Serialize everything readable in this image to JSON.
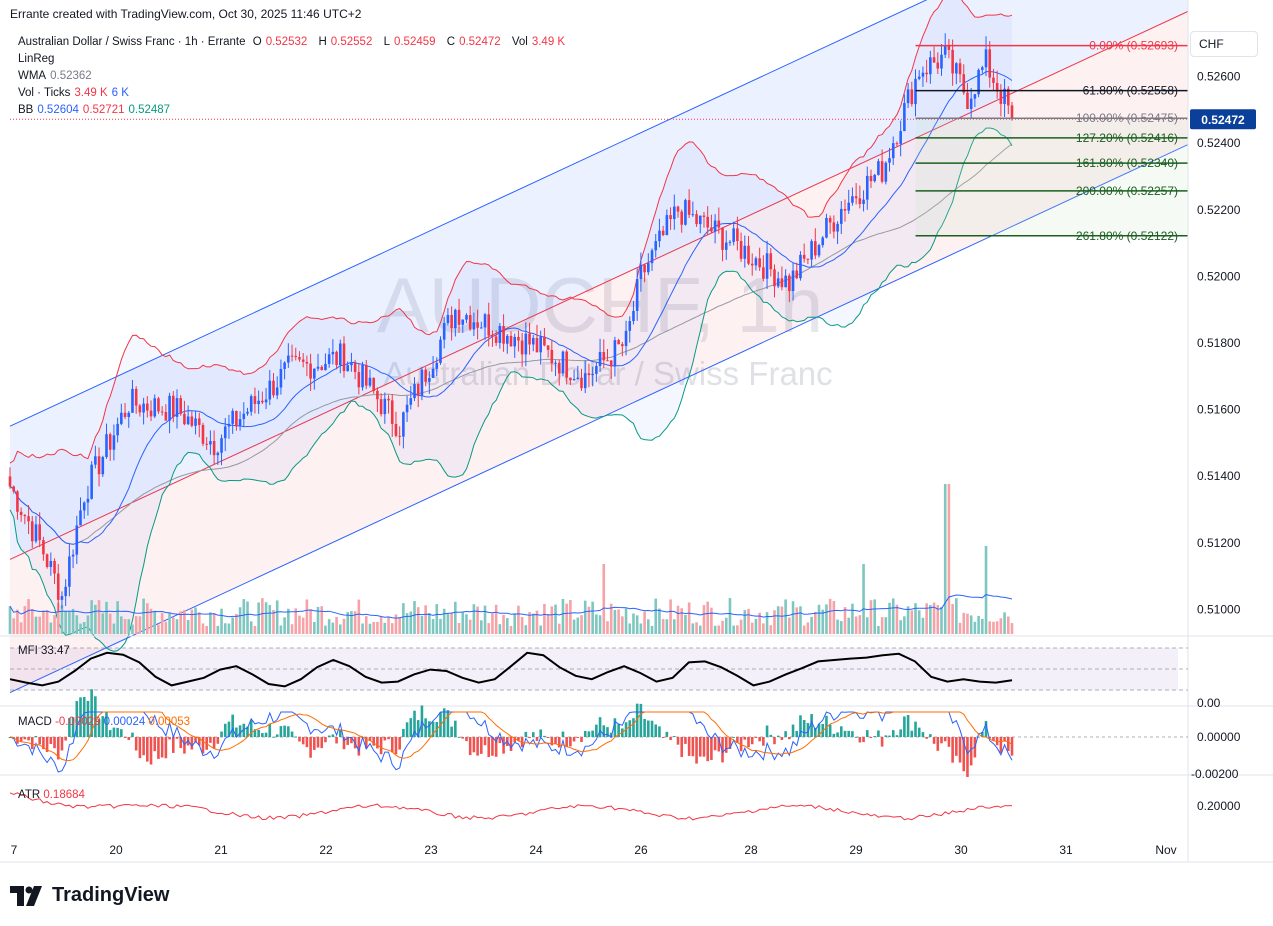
{
  "header": {
    "credit": "Errante created with TradingView.com, Oct 30, 2025 11:46 UTC+2"
  },
  "legend": {
    "symbol": "Australian Dollar / Swiss Franc · 1h · Errante",
    "o_label": "O",
    "o_value": "0.52532",
    "h_label": "H",
    "h_value": "0.52552",
    "l_label": "L",
    "l_value": "0.52459",
    "c_label": "C",
    "c_value": "0.52472",
    "vol_label": "Vol",
    "vol_value": "3.49 K",
    "linreg": "LinReg",
    "wma_label": "WMA",
    "wma_value": "0.52362",
    "volticks_label": "Vol · Ticks",
    "volticks_v1": "3.49 K",
    "volticks_v2": "6 K",
    "bb_label": "BB",
    "bb_basis": "0.52604",
    "bb_upper": "0.52721",
    "bb_lower": "0.52487"
  },
  "currency": "CHF",
  "logo_text": "TradingView",
  "watermark": {
    "ticker": "AUDCHF, 1h",
    "name": "Australian Dollar / Swiss Franc"
  },
  "colors": {
    "up": "#2962ff",
    "down": "#f23645",
    "vol_up": "#7ec7c0",
    "vol_down": "#f5a3a7",
    "channel_line": "#2962ff",
    "regression_line": "#f23645",
    "price_label_bg": "#0a3f9a"
  },
  "chart_data": [
    {
      "type": "candlestick",
      "title": "AUDCHF, 1h",
      "x_ticks": [
        "7",
        "20",
        "21",
        "22",
        "23",
        "24",
        "26",
        "28",
        "29",
        "30",
        "31",
        "Nov"
      ],
      "y_ticks": [
        "0.52600",
        "0.52400",
        "0.52200",
        "0.52000",
        "0.51800",
        "0.51600",
        "0.51400",
        "0.51200",
        "0.51000"
      ],
      "ylim": [
        0.5092,
        0.5274
      ],
      "last_price": "0.52472",
      "last_price_value": 0.52472,
      "anchor_points": [
        {
          "x": 0,
          "y": 0.5137
        },
        {
          "x": 8,
          "y": 0.512
        },
        {
          "x": 14,
          "y": 0.5104
        },
        {
          "x": 20,
          "y": 0.5135
        },
        {
          "x": 32,
          "y": 0.5162
        },
        {
          "x": 45,
          "y": 0.516
        },
        {
          "x": 55,
          "y": 0.515
        },
        {
          "x": 75,
          "y": 0.5172
        },
        {
          "x": 90,
          "y": 0.5176
        },
        {
          "x": 105,
          "y": 0.5155
        },
        {
          "x": 120,
          "y": 0.519
        },
        {
          "x": 140,
          "y": 0.518
        },
        {
          "x": 155,
          "y": 0.517
        },
        {
          "x": 166,
          "y": 0.518
        },
        {
          "x": 170,
          "y": 0.52
        },
        {
          "x": 180,
          "y": 0.522
        },
        {
          "x": 195,
          "y": 0.521
        },
        {
          "x": 210,
          "y": 0.5198
        },
        {
          "x": 225,
          "y": 0.5222
        },
        {
          "x": 235,
          "y": 0.5232
        },
        {
          "x": 245,
          "y": 0.5262
        },
        {
          "x": 252,
          "y": 0.5266
        },
        {
          "x": 258,
          "y": 0.5254
        },
        {
          "x": 263,
          "y": 0.5264
        },
        {
          "x": 270,
          "y": 0.5248
        }
      ],
      "fibonacci": [
        {
          "label": "0.00% (0.52693)",
          "value": 0.52693
        },
        {
          "label": "61.80% (0.52558)",
          "value": 0.52558
        },
        {
          "label": "100.00% (0.52475)",
          "value": 0.52475
        },
        {
          "label": "127.20% (0.52416)",
          "value": 0.52416
        },
        {
          "label": "161.80% (0.52340)",
          "value": 0.5234
        },
        {
          "label": "200.00% (0.52257)",
          "value": 0.52257
        },
        {
          "label": "261.80% (0.52122)",
          "value": 0.52122
        }
      ],
      "regression_channel": {
        "start": [
          0,
          0.5115
        ],
        "end": [
          270,
          0.5255
        ],
        "width": 0.004
      }
    },
    {
      "type": "line",
      "title": "MFI",
      "label": "MFI 33.47",
      "y_ticks": [
        "0.00"
      ],
      "values": [
        35,
        28,
        22,
        30,
        52,
        78,
        90,
        86,
        70,
        40,
        22,
        30,
        38,
        55,
        62,
        45,
        25,
        20,
        35,
        60,
        75,
        62,
        40,
        28,
        30,
        45,
        55,
        52,
        38,
        28,
        35,
        62,
        90,
        85,
        60,
        42,
        35,
        50,
        62,
        48,
        30,
        38,
        70,
        72,
        60,
        42,
        22,
        30,
        45,
        58,
        72,
        75,
        78,
        80,
        85,
        88,
        72,
        40,
        30,
        35,
        30,
        28,
        33
      ]
    },
    {
      "type": "macd",
      "title": "MACD",
      "label": "MACD",
      "values_text": [
        "-0.00029",
        "0.00024",
        "0.00053"
      ],
      "y_ticks": [
        "0.00000",
        "-0.00200"
      ]
    },
    {
      "type": "line",
      "title": "ATR",
      "label": "ATR",
      "value_text": "0.18684",
      "y_ticks": [
        "0.20000"
      ]
    }
  ]
}
